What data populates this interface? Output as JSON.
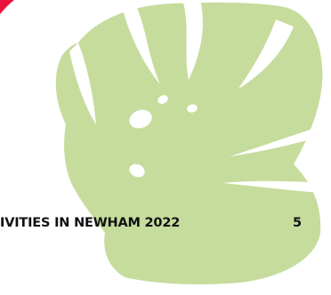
{
  "page": {
    "footer_title": "IVITIES IN NEWHAM 2022",
    "page_number": "5"
  },
  "colors": {
    "leaf": "#c6dc9c",
    "accent": "#e8123c",
    "text": "#111111",
    "background": "#ffffff"
  },
  "decorations": {
    "leaf_icon": "monstera-leaf-icon",
    "corner_mark": "red-corner-mark"
  }
}
